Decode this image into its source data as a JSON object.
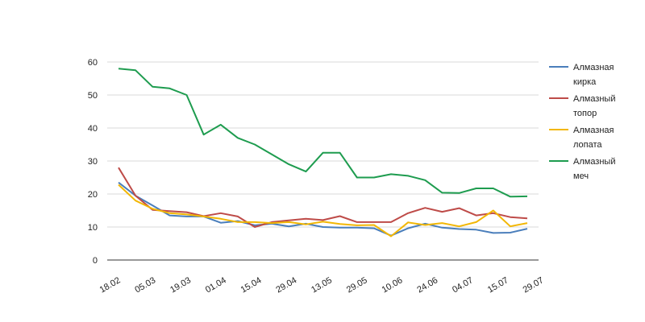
{
  "chart_data": {
    "type": "line",
    "title": "",
    "xlabel": "",
    "ylabel": "",
    "ylim": [
      0,
      60
    ],
    "yticks": [
      0,
      10,
      20,
      30,
      40,
      50,
      60
    ],
    "grid": true,
    "legend_position": "right",
    "x_tick_labels": [
      "18.02",
      "05.03",
      "19.03",
      "01.04",
      "15.04",
      "29.04",
      "13.05",
      "29.05",
      "10.06",
      "24.06",
      "04.07",
      "15.07",
      "29.07"
    ],
    "n_points": 25,
    "series": [
      {
        "name": "Алмазная кирка",
        "name_lines": [
          "Алмазная",
          "кирка"
        ],
        "color": "#4a7ebb",
        "values": [
          23.5,
          19.5,
          16.5,
          13.5,
          13.2,
          13.2,
          11.3,
          11.8,
          10.5,
          11,
          10.2,
          11,
          10,
          9.8,
          9.8,
          9.6,
          7.4,
          9.6,
          11,
          9.8,
          9.4,
          9.2,
          8.2,
          8.3,
          9.5
        ]
      },
      {
        "name": "Алмазный топор",
        "name_lines": [
          "Алмазный",
          "топор"
        ],
        "color": "#be4b48",
        "values": [
          28,
          19.5,
          15.2,
          14.8,
          14.5,
          13.3,
          14.2,
          13.2,
          10,
          11.5,
          12,
          12.5,
          12.1,
          13.3,
          11.5,
          11.5,
          11.5,
          14.2,
          15.8,
          14.6,
          15.7,
          13.5,
          14.2,
          13,
          12.6
        ]
      },
      {
        "name": "Алмазная лопата",
        "name_lines": [
          "Алмазная",
          "лопата"
        ],
        "color": "#f2b705",
        "values": [
          22.8,
          18,
          15.5,
          14.2,
          13.8,
          13.2,
          12.5,
          11.5,
          11.5,
          11.2,
          11.5,
          10.8,
          11.6,
          10.9,
          10.5,
          10.6,
          7.2,
          11.4,
          10.6,
          11.2,
          10.2,
          11.5,
          15,
          10.2,
          11.2
        ]
      },
      {
        "name": "Алмазный меч",
        "name_lines": [
          "Алмазный",
          "меч"
        ],
        "color": "#1e9c4f",
        "values": [
          58,
          57.5,
          52.5,
          52,
          50,
          38,
          41,
          37,
          35,
          32,
          29,
          26.8,
          32.5,
          32.5,
          25,
          25,
          26,
          25.5,
          24.2,
          20.4,
          20.3,
          21.7,
          21.7,
          19.2,
          19.3
        ]
      }
    ]
  }
}
